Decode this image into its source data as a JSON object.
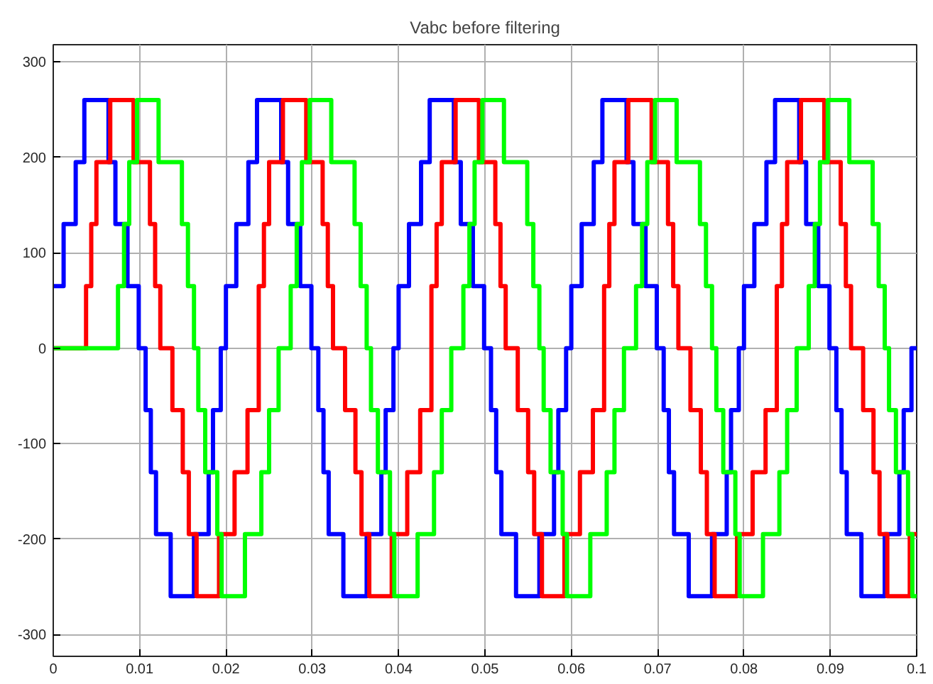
{
  "chart_data": {
    "type": "step",
    "title": "Vabc before filtering",
    "xlim": [
      0,
      0.1
    ],
    "ylim": [
      -323,
      318
    ],
    "xticks": [
      0,
      0.01,
      0.02,
      0.03,
      0.04,
      0.05,
      0.06,
      0.07,
      0.08,
      0.09,
      0.1
    ],
    "yticks": [
      -300,
      -200,
      -100,
      0,
      100,
      200,
      300
    ],
    "grid": true,
    "line_style": "solid",
    "marker": "none",
    "series": [
      {
        "color": "#0000ff",
        "x": [
          0,
          0.0012,
          0.0026,
          0.0036,
          0.0064,
          0.0072,
          0.0086,
          0.0099,
          0.0107,
          0.0113,
          0.0119,
          0.0136,
          0.0163,
          0.018,
          0.0185,
          0.0194,
          0.02,
          0.0212,
          0.0226,
          0.0236,
          0.0264,
          0.0272,
          0.0286,
          0.0299,
          0.0307,
          0.0313,
          0.0319,
          0.0336,
          0.0363,
          0.038,
          0.0385,
          0.0394,
          0.04,
          0.0412,
          0.0426,
          0.0436,
          0.0464,
          0.0472,
          0.0486,
          0.0499,
          0.0507,
          0.0513,
          0.0519,
          0.0536,
          0.0563,
          0.058,
          0.0585,
          0.0594,
          0.06,
          0.0612,
          0.0626,
          0.0636,
          0.0664,
          0.0672,
          0.0686,
          0.0699,
          0.0707,
          0.0713,
          0.0719,
          0.0736,
          0.0763,
          0.078,
          0.0785,
          0.0794,
          0.08,
          0.0812,
          0.0826,
          0.0836,
          0.0864,
          0.0872,
          0.0886,
          0.0899,
          0.0907,
          0.0913,
          0.0919,
          0.0936,
          0.0963,
          0.098,
          0.0985,
          0.0994,
          0.1
        ],
        "values": [
          65,
          130,
          195,
          260,
          195,
          130,
          65,
          0,
          -65,
          -130,
          -195,
          -260,
          -195,
          -130,
          -65,
          0,
          65,
          130,
          195,
          260,
          195,
          130,
          65,
          0,
          -65,
          -130,
          -195,
          -260,
          -195,
          -130,
          -65,
          0,
          65,
          130,
          195,
          260,
          195,
          130,
          65,
          0,
          -65,
          -130,
          -195,
          -260,
          -195,
          -130,
          -65,
          0,
          65,
          130,
          195,
          260,
          195,
          130,
          65,
          0,
          -65,
          -130,
          -195,
          -260,
          -195,
          -130,
          -65,
          0,
          65,
          130,
          195,
          260,
          195,
          130,
          65,
          0,
          -65,
          -130,
          -195,
          -260,
          -195,
          -130,
          -65,
          0,
          0
        ]
      },
      {
        "color": "#ff0000",
        "x": [
          0,
          0.0038,
          0.0044,
          0.005,
          0.0066,
          0.0093,
          0.0112,
          0.0118,
          0.0124,
          0.0138,
          0.015,
          0.0157,
          0.0166,
          0.0192,
          0.021,
          0.0225,
          0.0238,
          0.0244,
          0.025,
          0.0266,
          0.0293,
          0.0312,
          0.0318,
          0.0324,
          0.0338,
          0.035,
          0.0357,
          0.0366,
          0.0392,
          0.041,
          0.0425,
          0.0438,
          0.0444,
          0.045,
          0.0466,
          0.0493,
          0.0512,
          0.0518,
          0.0524,
          0.0538,
          0.055,
          0.0557,
          0.0566,
          0.0592,
          0.061,
          0.0625,
          0.0638,
          0.0644,
          0.065,
          0.0666,
          0.0693,
          0.0712,
          0.0718,
          0.0724,
          0.0738,
          0.075,
          0.0757,
          0.0766,
          0.0792,
          0.081,
          0.0825,
          0.0838,
          0.0844,
          0.085,
          0.0866,
          0.0893,
          0.0912,
          0.0918,
          0.0924,
          0.0938,
          0.095,
          0.0957,
          0.0966,
          0.0992,
          0.1
        ],
        "values": [
          0,
          65,
          130,
          195,
          260,
          195,
          130,
          65,
          0,
          -65,
          -130,
          -195,
          -260,
          -195,
          -130,
          -65,
          65,
          130,
          195,
          260,
          195,
          130,
          65,
          0,
          -65,
          -130,
          -195,
          -260,
          -195,
          -130,
          -65,
          65,
          130,
          195,
          260,
          195,
          130,
          65,
          0,
          -65,
          -130,
          -195,
          -260,
          -195,
          -130,
          -65,
          65,
          130,
          195,
          260,
          195,
          130,
          65,
          0,
          -65,
          -130,
          -195,
          -260,
          -195,
          -130,
          -65,
          65,
          130,
          195,
          260,
          195,
          130,
          65,
          0,
          -65,
          -130,
          -195,
          -260,
          -195,
          -195
        ]
      },
      {
        "color": "#00ff00",
        "x": [
          0,
          0.0075,
          0.0082,
          0.0088,
          0.0097,
          0.0122,
          0.0149,
          0.0156,
          0.0163,
          0.0168,
          0.0176,
          0.019,
          0.0195,
          0.0222,
          0.0241,
          0.025,
          0.0261,
          0.0275,
          0.0282,
          0.0288,
          0.0297,
          0.0322,
          0.0349,
          0.0356,
          0.0363,
          0.0368,
          0.0376,
          0.039,
          0.0395,
          0.0422,
          0.0441,
          0.045,
          0.0461,
          0.0475,
          0.0482,
          0.0488,
          0.0497,
          0.0522,
          0.0549,
          0.0556,
          0.0563,
          0.0568,
          0.0576,
          0.059,
          0.0595,
          0.0622,
          0.0641,
          0.065,
          0.0661,
          0.0675,
          0.0682,
          0.0688,
          0.0697,
          0.0722,
          0.0749,
          0.0756,
          0.0763,
          0.0768,
          0.0776,
          0.079,
          0.0795,
          0.0822,
          0.0841,
          0.085,
          0.0861,
          0.0875,
          0.0882,
          0.0888,
          0.0897,
          0.0922,
          0.0949,
          0.0956,
          0.0963,
          0.0968,
          0.0976,
          0.099,
          0.0995,
          0.1
        ],
        "values": [
          0,
          65,
          130,
          195,
          260,
          195,
          130,
          65,
          0,
          -65,
          -130,
          -195,
          -260,
          -195,
          -130,
          -65,
          0,
          65,
          130,
          195,
          260,
          195,
          130,
          65,
          0,
          -65,
          -130,
          -195,
          -260,
          -195,
          -130,
          -65,
          0,
          65,
          130,
          195,
          260,
          195,
          130,
          65,
          0,
          -65,
          -130,
          -195,
          -260,
          -195,
          -130,
          -65,
          0,
          65,
          130,
          195,
          260,
          195,
          130,
          65,
          0,
          -65,
          -130,
          -195,
          -260,
          -195,
          -130,
          -65,
          0,
          65,
          130,
          195,
          260,
          195,
          130,
          65,
          0,
          -65,
          -130,
          -195,
          -260,
          -260
        ]
      }
    ]
  }
}
